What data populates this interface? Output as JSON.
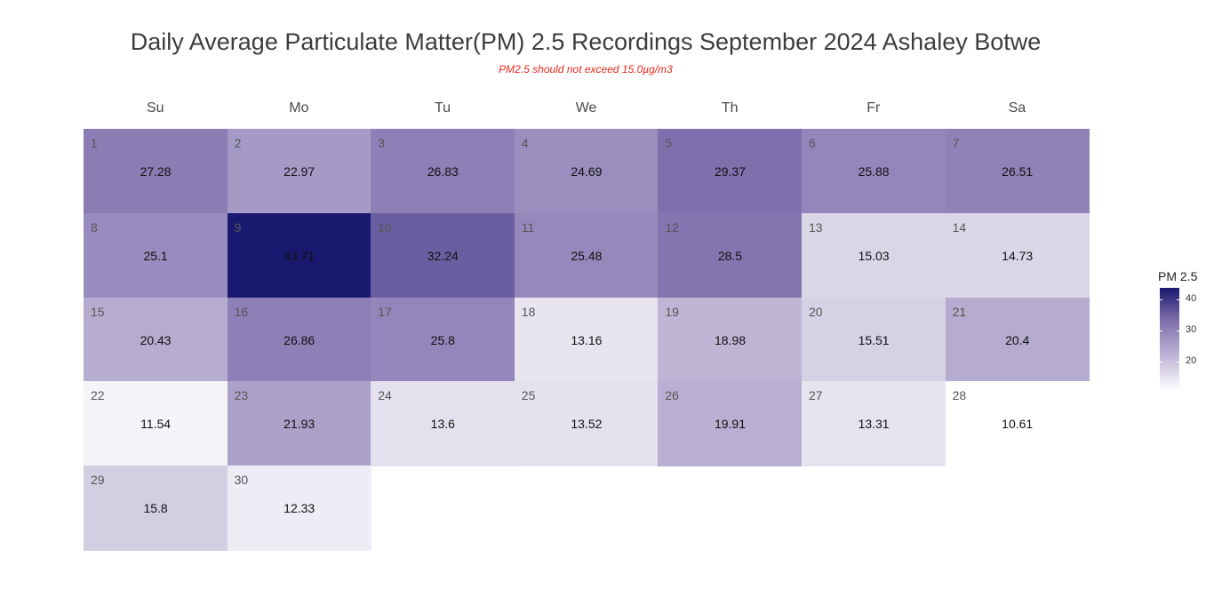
{
  "chart_data": {
    "type": "heatmap",
    "title": "Daily Average Particulate Matter(PM) 2.5 Recordings September 2024 Ashaley Botwe",
    "subtitle": "PM2.5 should not exceed 15.0µg/m3",
    "weekdays": [
      "Su",
      "Mo",
      "Tu",
      "We",
      "Th",
      "Fr",
      "Sa"
    ],
    "first_weekday_index": 0,
    "days": [
      {
        "day": "1",
        "value": 27.28
      },
      {
        "day": "2",
        "value": 22.97
      },
      {
        "day": "3",
        "value": 26.83
      },
      {
        "day": "4",
        "value": 24.69
      },
      {
        "day": "5",
        "value": 29.37
      },
      {
        "day": "6",
        "value": 25.88
      },
      {
        "day": "7",
        "value": 26.51
      },
      {
        "day": "8",
        "value": 25.1
      },
      {
        "day": "9",
        "value": 43.71
      },
      {
        "day": "10",
        "value": 32.24
      },
      {
        "day": "11",
        "value": 25.48
      },
      {
        "day": "12",
        "value": 28.5
      },
      {
        "day": "13",
        "value": 15.03
      },
      {
        "day": "14",
        "value": 14.73
      },
      {
        "day": "15",
        "value": 20.43
      },
      {
        "day": "16",
        "value": 26.86
      },
      {
        "day": "17",
        "value": 25.8
      },
      {
        "day": "18",
        "value": 13.16
      },
      {
        "day": "19",
        "value": 18.98
      },
      {
        "day": "20",
        "value": 15.51
      },
      {
        "day": "21",
        "value": 20.4
      },
      {
        "day": "22",
        "value": 11.54
      },
      {
        "day": "23",
        "value": 21.93
      },
      {
        "day": "24",
        "value": 13.6
      },
      {
        "day": "25",
        "value": 13.52
      },
      {
        "day": "26",
        "value": 19.91
      },
      {
        "day": "27",
        "value": 13.31
      },
      {
        "day": "28",
        "value": 10.61
      },
      {
        "day": "29",
        "value": 15.8
      },
      {
        "day": "30",
        "value": 12.33
      }
    ],
    "legend": {
      "title": "PM 2.5",
      "ticks": [
        "20",
        "30",
        "40"
      ],
      "tick_values": [
        20,
        30,
        40
      ],
      "range": [
        10.61,
        43.71
      ],
      "placement": "right",
      "colors": {
        "low": "#ffffff",
        "mid": "#8c7db5",
        "high": "#191970"
      }
    }
  }
}
